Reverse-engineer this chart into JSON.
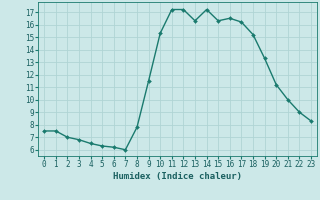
{
  "x": [
    0,
    1,
    2,
    3,
    4,
    5,
    6,
    7,
    8,
    9,
    10,
    11,
    12,
    13,
    14,
    15,
    16,
    17,
    18,
    19,
    20,
    21,
    22,
    23
  ],
  "y": [
    7.5,
    7.5,
    7.0,
    6.8,
    6.5,
    6.3,
    6.2,
    6.0,
    7.8,
    11.5,
    15.3,
    17.2,
    17.2,
    16.3,
    17.2,
    16.3,
    16.5,
    16.2,
    15.2,
    13.3,
    11.2,
    10.0,
    9.0,
    8.3
  ],
  "title": "",
  "xlabel": "Humidex (Indice chaleur)",
  "ylabel": "",
  "xlim": [
    -0.5,
    23.5
  ],
  "ylim": [
    5.5,
    17.8
  ],
  "yticks": [
    6,
    7,
    8,
    9,
    10,
    11,
    12,
    13,
    14,
    15,
    16,
    17
  ],
  "xticks": [
    0,
    1,
    2,
    3,
    4,
    5,
    6,
    7,
    8,
    9,
    10,
    11,
    12,
    13,
    14,
    15,
    16,
    17,
    18,
    19,
    20,
    21,
    22,
    23
  ],
  "line_color": "#1a7a6e",
  "marker_color": "#1a7a6e",
  "bg_color": "#cce8e8",
  "grid_color": "#b0d4d4",
  "tick_label_color": "#1a6060",
  "xlabel_color": "#1a6060",
  "font_size": 5.5,
  "xlabel_fontsize": 6.5,
  "line_width": 1.0,
  "marker_size": 2.0
}
